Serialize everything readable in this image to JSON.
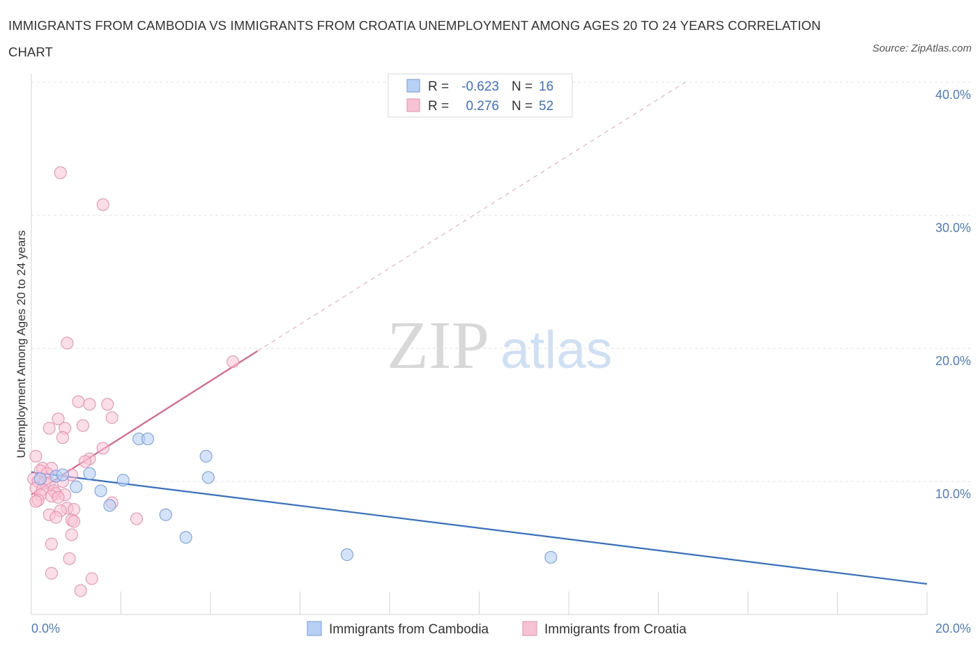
{
  "title": "IMMIGRANTS FROM CAMBODIA VS IMMIGRANTS FROM CROATIA UNEMPLOYMENT AMONG AGES 20 TO 24 YEARS CORRELATION CHART",
  "source": "Source: ZipAtlas.com",
  "watermark": {
    "zip": "ZIP",
    "atlas": "atlas"
  },
  "colors": {
    "cambodia_fill": "#b8d0f4",
    "cambodia_stroke": "#6f9ae0",
    "cambodia_line": "#2f6fd4",
    "croatia_fill": "#f7c3d4",
    "croatia_stroke": "#e98bab",
    "croatia_line": "#e0608c",
    "grid": "#dde1e8",
    "tick_label": "#4a7cc9"
  },
  "legend": {
    "rows": [
      {
        "r_label": "R =",
        "r_value": "-0.623",
        "n_label": "N =",
        "n_value": "16"
      },
      {
        "r_label": "R =",
        "r_value": "0.276",
        "n_label": "N =",
        "n_value": "52"
      }
    ]
  },
  "chart_data": {
    "type": "scatter",
    "title": "IMMIGRANTS FROM CAMBODIA VS IMMIGRANTS FROM CROATIA UNEMPLOYMENT AMONG AGES 20 TO 24 YEARS CORRELATION CHART",
    "xlabel": "",
    "ylabel": "Unemployment Among Ages 20 to 24 years",
    "xlim": [
      0,
      20
    ],
    "ylim": [
      0,
      40
    ],
    "x_tick_labels": [
      "0.0%",
      "20.0%"
    ],
    "y_ticks": [
      10,
      20,
      30,
      40
    ],
    "y_tick_labels": [
      "10.0%",
      "20.0%",
      "30.0%",
      "40.0%"
    ],
    "grid": true,
    "legend_position": "top-center",
    "series": [
      {
        "name": "Immigrants from Cambodia",
        "r": -0.623,
        "n": 16,
        "points": [
          [
            0.55,
            10.4
          ],
          [
            0.7,
            10.5
          ],
          [
            1.0,
            9.6
          ],
          [
            1.3,
            10.6
          ],
          [
            1.55,
            9.3
          ],
          [
            1.75,
            8.2
          ],
          [
            2.05,
            10.1
          ],
          [
            2.4,
            13.2
          ],
          [
            2.6,
            13.2
          ],
          [
            3.0,
            7.5
          ],
          [
            3.45,
            5.8
          ],
          [
            3.9,
            11.9
          ],
          [
            3.95,
            10.3
          ],
          [
            7.05,
            4.5
          ],
          [
            11.6,
            4.3
          ],
          [
            0.2,
            10.2
          ]
        ],
        "trend": {
          "x": [
            0,
            20
          ],
          "y": [
            10.7,
            2.3
          ],
          "style": "solid"
        }
      },
      {
        "name": "Immigrants from Croatia",
        "r": 0.276,
        "n": 52,
        "points": [
          [
            0.65,
            33.2
          ],
          [
            1.6,
            30.8
          ],
          [
            0.8,
            20.4
          ],
          [
            4.5,
            19.0
          ],
          [
            1.05,
            16.0
          ],
          [
            1.3,
            15.8
          ],
          [
            1.7,
            15.8
          ],
          [
            0.6,
            14.7
          ],
          [
            1.8,
            14.8
          ],
          [
            0.4,
            14.0
          ],
          [
            0.75,
            14.0
          ],
          [
            1.15,
            14.2
          ],
          [
            0.7,
            13.3
          ],
          [
            1.6,
            12.5
          ],
          [
            0.1,
            11.9
          ],
          [
            1.3,
            11.7
          ],
          [
            1.2,
            11.5
          ],
          [
            0.25,
            11.0
          ],
          [
            0.45,
            11.0
          ],
          [
            0.2,
            10.8
          ],
          [
            0.35,
            10.6
          ],
          [
            0.9,
            10.5
          ],
          [
            0.05,
            10.2
          ],
          [
            0.15,
            10.0
          ],
          [
            0.3,
            9.9
          ],
          [
            0.4,
            9.9
          ],
          [
            0.7,
            10.0
          ],
          [
            0.1,
            9.5
          ],
          [
            0.25,
            9.4
          ],
          [
            0.5,
            9.3
          ],
          [
            0.55,
            9.1
          ],
          [
            0.2,
            9.0
          ],
          [
            0.75,
            9.0
          ],
          [
            0.45,
            8.9
          ],
          [
            0.6,
            8.8
          ],
          [
            0.15,
            8.6
          ],
          [
            0.1,
            8.5
          ],
          [
            0.8,
            8.0
          ],
          [
            0.95,
            7.9
          ],
          [
            0.65,
            7.8
          ],
          [
            1.8,
            8.4
          ],
          [
            0.4,
            7.5
          ],
          [
            0.55,
            7.3
          ],
          [
            0.9,
            7.1
          ],
          [
            0.95,
            7.0
          ],
          [
            2.35,
            7.2
          ],
          [
            0.9,
            6.0
          ],
          [
            0.45,
            5.3
          ],
          [
            0.85,
            4.2
          ],
          [
            0.45,
            3.1
          ],
          [
            1.35,
            2.7
          ],
          [
            1.1,
            1.8
          ]
        ],
        "trend": {
          "x": [
            0,
            5.05
          ],
          "y": [
            9.0,
            19.8
          ],
          "style": "solid",
          "extension": {
            "x": [
              5.05,
              14.6
            ],
            "y": [
              19.8,
              40.0
            ],
            "style": "dashed"
          }
        }
      }
    ]
  },
  "bottom_legend": [
    {
      "label": "Immigrants from Cambodia"
    },
    {
      "label": "Immigrants from Croatia"
    }
  ]
}
